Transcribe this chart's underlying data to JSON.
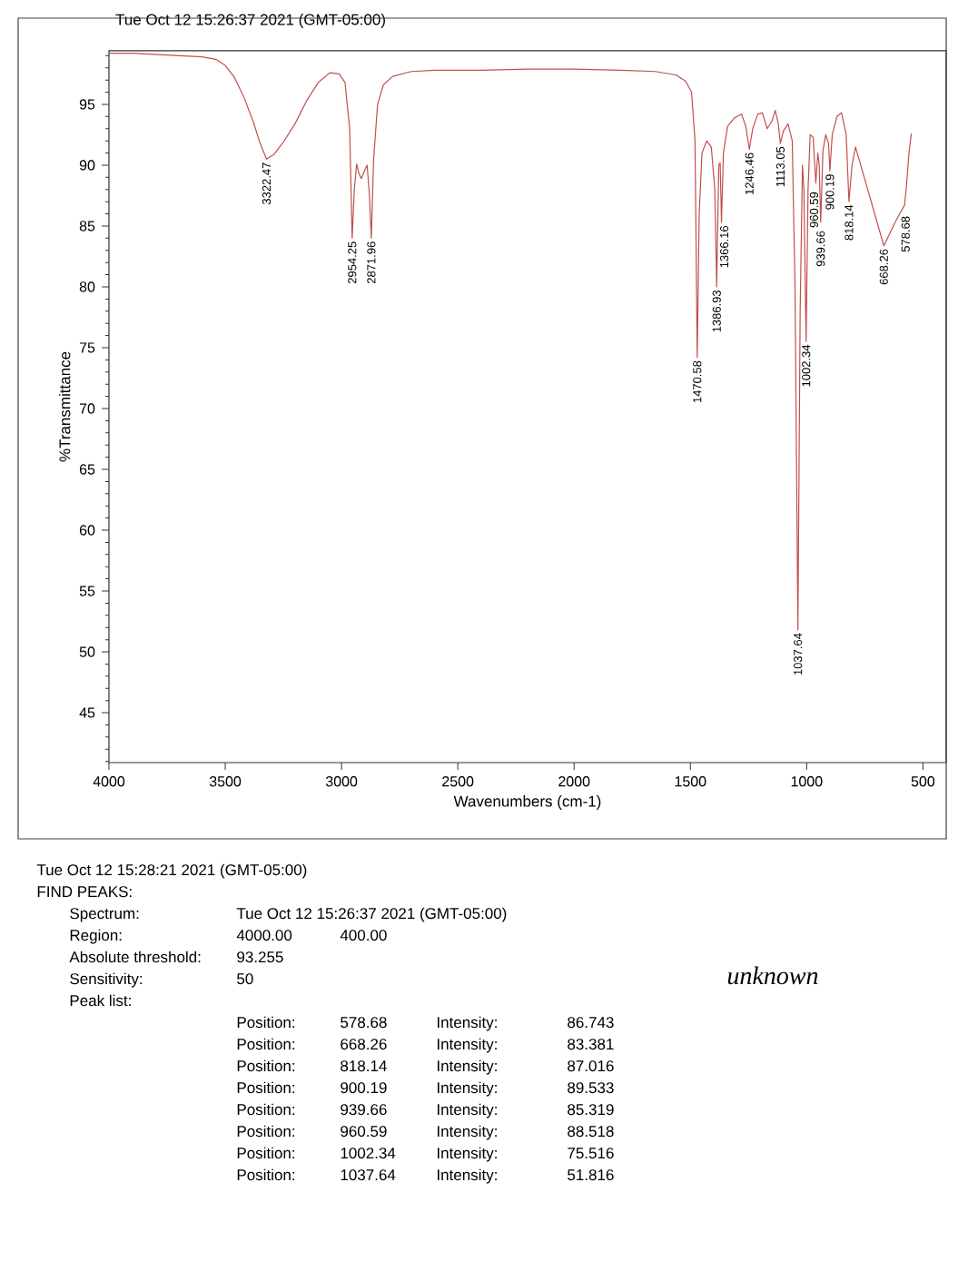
{
  "chart_data": {
    "type": "line",
    "title": "Tue Oct 12 15:26:37 2021 (GMT-05:00)",
    "xlabel": "Wavenumbers (cm-1)",
    "ylabel": "%Transmittance",
    "x": [
      4000,
      3900,
      3800,
      3700,
      3600,
      3540,
      3500,
      3460,
      3420,
      3380,
      3350,
      3322.47,
      3290,
      3250,
      3200,
      3150,
      3100,
      3050,
      3010,
      2985,
      2965,
      2954.25,
      2945,
      2935,
      2925,
      2915,
      2900,
      2890,
      2880,
      2871.96,
      2862,
      2845,
      2820,
      2780,
      2700,
      2600,
      2400,
      2200,
      2000,
      1800,
      1650,
      1560,
      1520,
      1495,
      1480,
      1470.58,
      1462,
      1450,
      1430,
      1410,
      1395,
      1386.93,
      1378,
      1372,
      1366.16,
      1358,
      1340,
      1310,
      1280,
      1262,
      1246.46,
      1232,
      1210,
      1190,
      1170,
      1150,
      1135,
      1122,
      1113.05,
      1100,
      1080,
      1062,
      1050,
      1037.64,
      1028,
      1018,
      1012,
      1002.34,
      994,
      985,
      972,
      960.59,
      952,
      946,
      939.66,
      930,
      918,
      906,
      900.19,
      890,
      870,
      850,
      830,
      818.14,
      805,
      790,
      760,
      730,
      700,
      668.26,
      640,
      620,
      600,
      578.68,
      570,
      560,
      550
    ],
    "series": [
      {
        "color": "#c0504d",
        "values": [
          99.2,
          99.2,
          99.1,
          99.0,
          98.9,
          98.7,
          98.2,
          97.2,
          95.6,
          93.6,
          91.8,
          90.5,
          90.9,
          91.9,
          93.4,
          95.3,
          96.8,
          97.6,
          97.5,
          96.8,
          93.0,
          84.0,
          88.0,
          90.1,
          89.3,
          88.9,
          89.6,
          90.0,
          87.5,
          84.0,
          90.5,
          95.0,
          96.6,
          97.3,
          97.7,
          97.8,
          97.8,
          97.9,
          97.9,
          97.8,
          97.7,
          97.4,
          96.9,
          96.0,
          92.0,
          74.2,
          86.0,
          91.0,
          92.0,
          91.5,
          88.0,
          80.0,
          90.0,
          90.2,
          85.3,
          91.0,
          93.2,
          93.9,
          94.2,
          93.2,
          91.3,
          93.0,
          94.2,
          94.3,
          93.0,
          93.6,
          94.5,
          93.4,
          91.8,
          92.8,
          93.4,
          92.0,
          80.0,
          51.816,
          78.0,
          90.0,
          88.0,
          75.516,
          88.0,
          92.5,
          92.3,
          88.518,
          91.0,
          90.0,
          85.319,
          91.2,
          92.5,
          91.8,
          89.533,
          92.5,
          94.0,
          94.3,
          92.5,
          87.016,
          90.0,
          91.5,
          89.5,
          87.5,
          85.5,
          83.381,
          84.5,
          85.3,
          86.0,
          86.743,
          88.5,
          91.0,
          92.6
        ]
      }
    ],
    "xlim": [
      4000,
      400
    ],
    "ylim": [
      40.9,
      99.4
    ],
    "xticks": [
      4000,
      3500,
      3000,
      2500,
      2000,
      1500,
      1000,
      500
    ],
    "yticks": [
      {
        "value": 41,
        "label": null
      },
      {
        "value": 42,
        "label": null
      },
      {
        "value": 43,
        "label": null
      },
      {
        "value": 44,
        "label": null
      },
      45,
      {
        "value": 46,
        "label": null
      },
      {
        "value": 47,
        "label": null
      },
      {
        "value": 48,
        "label": null
      },
      {
        "value": 49,
        "label": null
      },
      50,
      {
        "value": 51,
        "label": null
      },
      {
        "value": 52,
        "label": null
      },
      {
        "value": 53,
        "label": null
      },
      {
        "value": 54,
        "label": null
      },
      55,
      {
        "value": 56,
        "label": null
      },
      {
        "value": 57,
        "label": null
      },
      {
        "value": 58,
        "label": null
      },
      {
        "value": 59,
        "label": null
      },
      60,
      {
        "value": 61,
        "label": null
      },
      {
        "value": 62,
        "label": null
      },
      {
        "value": 63,
        "label": null
      },
      {
        "value": 64,
        "label": null
      },
      65,
      {
        "value": 66,
        "label": null
      },
      {
        "value": 67,
        "label": null
      },
      {
        "value": 68,
        "label": null
      },
      {
        "value": 69,
        "label": null
      },
      70,
      {
        "value": 71,
        "label": null
      },
      {
        "value": 72,
        "label": null
      },
      {
        "value": 73,
        "label": null
      },
      {
        "value": 74,
        "label": null
      },
      75,
      {
        "value": 76,
        "label": null
      },
      {
        "value": 77,
        "label": null
      },
      {
        "value": 78,
        "label": null
      },
      {
        "value": 79,
        "label": null
      },
      80,
      {
        "value": 81,
        "label": null
      },
      {
        "value": 82,
        "label": null
      },
      {
        "value": 83,
        "label": null
      },
      {
        "value": 84,
        "label": null
      },
      85,
      {
        "value": 86,
        "label": null
      },
      {
        "value": 87,
        "label": null
      },
      {
        "value": 88,
        "label": null
      },
      {
        "value": 89,
        "label": null
      },
      90,
      {
        "value": 91,
        "label": null
      },
      {
        "value": 92,
        "label": null
      },
      {
        "value": 93,
        "label": null
      },
      {
        "value": 94,
        "label": null
      },
      95,
      {
        "value": 96,
        "label": null
      },
      {
        "value": 97,
        "label": null
      },
      {
        "value": 98,
        "label": null
      },
      {
        "value": 99,
        "label": null
      }
    ],
    "annotations": [
      {
        "text": "3322.47",
        "x": 3322.47,
        "y": 90.5
      },
      {
        "text": "2954.25",
        "x": 2954.25,
        "y": 84.0
      },
      {
        "text": "2871.96",
        "x": 2871.96,
        "y": 84.0
      },
      {
        "text": "1470.58",
        "x": 1470.58,
        "y": 74.2
      },
      {
        "text": "1386.93",
        "x": 1386.93,
        "y": 80.0
      },
      {
        "text": "1366.16",
        "x": 1366.16,
        "y": 85.3
      },
      {
        "text": "1246.46",
        "x": 1246.46,
        "y": 91.3
      },
      {
        "text": "1113.05",
        "x": 1113.05,
        "y": 91.8
      },
      {
        "text": "1037.64",
        "x": 1037.64,
        "y": 51.816
      },
      {
        "text": "1002.34",
        "x": 1002.34,
        "y": 75.516
      },
      {
        "text": "960.59",
        "x": 960.59,
        "y": 88.518
      },
      {
        "text": "939.66",
        "x": 939.66,
        "y": 85.319
      },
      {
        "text": "900.19",
        "x": 900.19,
        "y": 89.533
      },
      {
        "text": "818.14",
        "x": 818.14,
        "y": 87.016
      },
      {
        "text": "668.26",
        "x": 668.26,
        "y": 83.381
      },
      {
        "text": "578.68",
        "x": 578.68,
        "y": 86.743
      },
      "Tue Oct 12 15:28:21 2021 (GMT-05:00)",
      "FIND PEAKS:",
      "Spectrum:",
      "Tue Oct 12 15:26:37 2021 (GMT-05:00)",
      "Region:",
      "4000.00",
      "400.00",
      "Absolute threshold:",
      "93.255",
      "Sensitivity:",
      "50",
      "Peak list:",
      "Position:",
      "578.68",
      "Intensity:",
      "86.743",
      "Position:",
      "668.26",
      "Intensity:",
      "83.381",
      "Position:",
      "818.14",
      "Intensity:",
      "87.016",
      "Position:",
      "900.19",
      "Intensity:",
      "89.533",
      "Position:",
      "939.66",
      "Intensity:",
      "85.319",
      "Position:",
      "960.59",
      "Intensity:",
      "88.518",
      "Position:",
      "1002.34",
      "Intensity:",
      "75.516",
      "Position:",
      "1037.64",
      "Intensity:",
      "51.816",
      "unknown"
    ]
  }
}
